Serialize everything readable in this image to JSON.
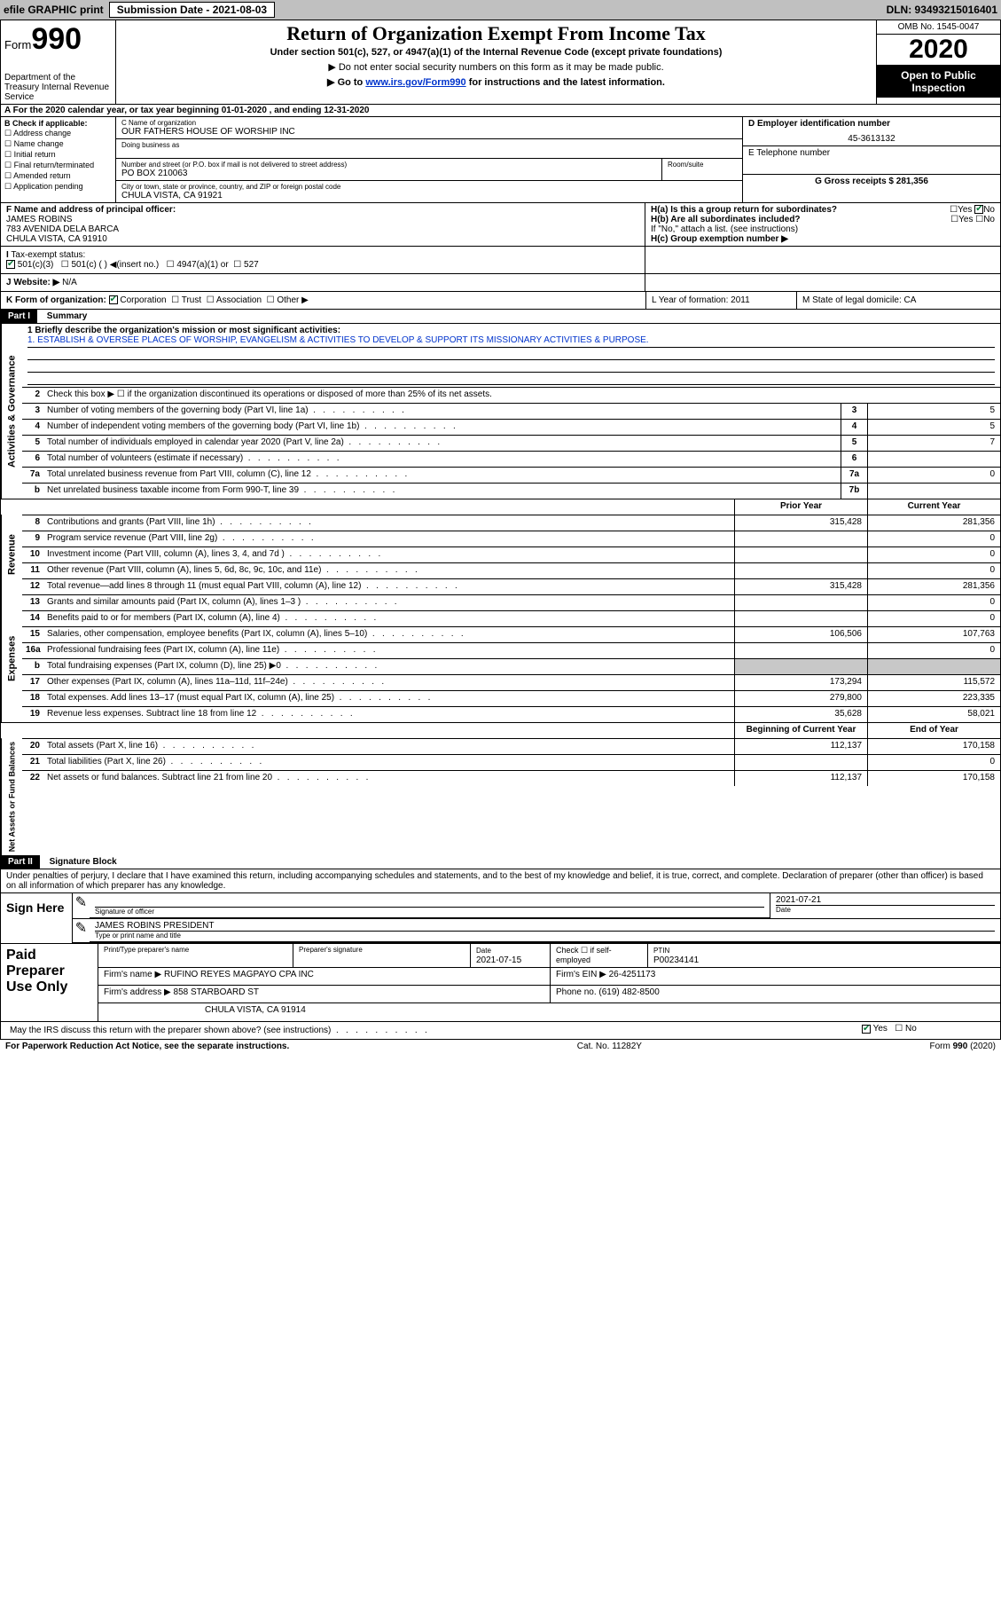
{
  "topbar": {
    "efile": "efile GRAPHIC print",
    "sub_label": "Submission Date - 2021-08-03",
    "dln": "DLN: 93493215016401"
  },
  "header": {
    "form_prefix": "Form",
    "form_num": "990",
    "dept": "Department of the Treasury Internal Revenue Service",
    "title": "Return of Organization Exempt From Income Tax",
    "subtitle": "Under section 501(c), 527, or 4947(a)(1) of the Internal Revenue Code (except private foundations)",
    "note1": "▶ Do not enter social security numbers on this form as it may be made public.",
    "note2_pre": "▶ Go to ",
    "note2_link": "www.irs.gov/Form990",
    "note2_post": " for instructions and the latest information.",
    "omb": "OMB No. 1545-0047",
    "year": "2020",
    "inspect": "Open to Public Inspection"
  },
  "row_a": "A For the 2020 calendar year, or tax year beginning 01-01-2020    , and ending 12-31-2020",
  "col_b": {
    "label": "B Check if applicable:",
    "opts": [
      "Address change",
      "Name change",
      "Initial return",
      "Final return/terminated",
      "Amended return",
      "Application pending"
    ]
  },
  "col_c": {
    "name_lbl": "C Name of organization",
    "name": "OUR FATHERS HOUSE OF WORSHIP INC",
    "dba_lbl": "Doing business as",
    "dba": "",
    "street_lbl": "Number and street (or P.O. box if mail is not delivered to street address)",
    "street": "PO BOX 210063",
    "room_lbl": "Room/suite",
    "city_lbl": "City or town, state or province, country, and ZIP or foreign postal code",
    "city": "CHULA VISTA, CA  91921"
  },
  "col_de": {
    "d_lbl": "D Employer identification number",
    "d_val": "45-3613132",
    "e_lbl": "E Telephone number",
    "e_val": "",
    "g_lbl": "G Gross receipts $ 281,356"
  },
  "row_f": {
    "lbl": "F  Name and address of principal officer:",
    "name": "JAMES ROBINS",
    "addr1": "783 AVENIDA DELA BARCA",
    "addr2": "CHULA VISTA, CA  91910"
  },
  "row_h": {
    "ha": "H(a)  Is this a group return for subordinates?",
    "hb": "H(b)  Are all subordinates included?",
    "hb_note": "If \"No,\" attach a list. (see instructions)",
    "hc": "H(c)  Group exemption number ▶",
    "yes": "Yes",
    "no": "No"
  },
  "row_i": {
    "lbl": "Tax-exempt status:",
    "opts": [
      "501(c)(3)",
      "501(c) (  ) ◀(insert no.)",
      "4947(a)(1) or",
      "527"
    ]
  },
  "row_j": {
    "lbl": "Website: ▶",
    "val": "N/A"
  },
  "row_k": {
    "lbl": "K Form of organization:",
    "opts": [
      "Corporation",
      "Trust",
      "Association",
      "Other ▶"
    ],
    "l": "L Year of formation: 2011",
    "m": "M State of legal domicile: CA"
  },
  "part1": {
    "hdr": "Part I",
    "title": "Summary",
    "line1_lbl": "1  Briefly describe the organization's mission or most significant activities:",
    "line1_val": "1. ESTABLISH & OVERSEE PLACES OF WORSHIP, EVANGELISM & ACTIVITIES TO DEVELOP & SUPPORT ITS MISSIONARY ACTIVITIES & PURPOSE.",
    "line2": "Check this box ▶ ☐  if the organization discontinued its operations or disposed of more than 25% of its net assets.",
    "gov_rows": [
      {
        "n": "3",
        "t": "Number of voting members of the governing body (Part VI, line 1a)",
        "box": "3",
        "v": "5"
      },
      {
        "n": "4",
        "t": "Number of independent voting members of the governing body (Part VI, line 1b)",
        "box": "4",
        "v": "5"
      },
      {
        "n": "5",
        "t": "Total number of individuals employed in calendar year 2020 (Part V, line 2a)",
        "box": "5",
        "v": "7"
      },
      {
        "n": "6",
        "t": "Total number of volunteers (estimate if necessary)",
        "box": "6",
        "v": ""
      },
      {
        "n": "7a",
        "t": "Total unrelated business revenue from Part VIII, column (C), line 12",
        "box": "7a",
        "v": "0"
      },
      {
        "n": "b",
        "t": "Net unrelated business taxable income from Form 990-T, line 39",
        "box": "7b",
        "v": ""
      }
    ],
    "col_hdr_prior": "Prior Year",
    "col_hdr_curr": "Current Year",
    "rev_label": "Revenue",
    "rev_rows": [
      {
        "n": "8",
        "t": "Contributions and grants (Part VIII, line 1h)",
        "p": "315,428",
        "c": "281,356"
      },
      {
        "n": "9",
        "t": "Program service revenue (Part VIII, line 2g)",
        "p": "",
        "c": "0"
      },
      {
        "n": "10",
        "t": "Investment income (Part VIII, column (A), lines 3, 4, and 7d )",
        "p": "",
        "c": "0"
      },
      {
        "n": "11",
        "t": "Other revenue (Part VIII, column (A), lines 5, 6d, 8c, 9c, 10c, and 11e)",
        "p": "",
        "c": "0"
      },
      {
        "n": "12",
        "t": "Total revenue—add lines 8 through 11 (must equal Part VIII, column (A), line 12)",
        "p": "315,428",
        "c": "281,356"
      }
    ],
    "exp_label": "Expenses",
    "exp_rows": [
      {
        "n": "13",
        "t": "Grants and similar amounts paid (Part IX, column (A), lines 1–3 )",
        "p": "",
        "c": "0"
      },
      {
        "n": "14",
        "t": "Benefits paid to or for members (Part IX, column (A), line 4)",
        "p": "",
        "c": "0"
      },
      {
        "n": "15",
        "t": "Salaries, other compensation, employee benefits (Part IX, column (A), lines 5–10)",
        "p": "106,506",
        "c": "107,763"
      },
      {
        "n": "16a",
        "t": "Professional fundraising fees (Part IX, column (A), line 11e)",
        "p": "",
        "c": "0"
      },
      {
        "n": "b",
        "t": "Total fundraising expenses (Part IX, column (D), line 25) ▶0",
        "p": "SHADE",
        "c": "SHADE"
      },
      {
        "n": "17",
        "t": "Other expenses (Part IX, column (A), lines 11a–11d, 11f–24e)",
        "p": "173,294",
        "c": "115,572"
      },
      {
        "n": "18",
        "t": "Total expenses. Add lines 13–17 (must equal Part IX, column (A), line 25)",
        "p": "279,800",
        "c": "223,335"
      },
      {
        "n": "19",
        "t": "Revenue less expenses. Subtract line 18 from line 12",
        "p": "35,628",
        "c": "58,021"
      }
    ],
    "na_label": "Net Assets or Fund Balances",
    "na_hdr_prior": "Beginning of Current Year",
    "na_hdr_curr": "End of Year",
    "na_rows": [
      {
        "n": "20",
        "t": "Total assets (Part X, line 16)",
        "p": "112,137",
        "c": "170,158"
      },
      {
        "n": "21",
        "t": "Total liabilities (Part X, line 26)",
        "p": "",
        "c": "0"
      },
      {
        "n": "22",
        "t": "Net assets or fund balances. Subtract line 21 from line 20",
        "p": "112,137",
        "c": "170,158"
      }
    ]
  },
  "part2": {
    "hdr": "Part II",
    "title": "Signature Block",
    "decl": "Under penalties of perjury, I declare that I have examined this return, including accompanying schedules and statements, and to the best of my knowledge and belief, it is true, correct, and complete. Declaration of preparer (other than officer) is based on all information of which preparer has any knowledge."
  },
  "sign": {
    "lbl": "Sign Here",
    "sig_lbl": "Signature of officer",
    "date_lbl": "Date",
    "date": "2021-07-21",
    "name_lbl": "Type or print name and title",
    "name": "JAMES ROBINS  PRESIDENT"
  },
  "paid": {
    "lbl": "Paid Preparer Use Only",
    "h1": "Print/Type preparer's name",
    "h2": "Preparer's signature",
    "h3": "Date",
    "h4": "Check ☐ if self-employed",
    "h5": "PTIN",
    "date": "2021-07-15",
    "ptin": "P00234141",
    "firm_lbl": "Firm's name    ▶",
    "firm": "RUFINO REYES MAGPAYO CPA INC",
    "ein_lbl": "Firm's EIN ▶",
    "ein": "26-4251173",
    "addr_lbl": "Firm's address ▶",
    "addr1": "858 STARBOARD ST",
    "addr2": "CHULA VISTA, CA  91914",
    "phone_lbl": "Phone no.",
    "phone": "(619) 482-8500"
  },
  "footer": {
    "discuss": "May the IRS discuss this return with the preparer shown above? (see instructions)",
    "yes": "Yes",
    "no": "No",
    "pra": "For Paperwork Reduction Act Notice, see the separate instructions.",
    "cat": "Cat. No. 11282Y",
    "form": "Form 990 (2020)"
  },
  "colors": {
    "link": "#0033cc",
    "check": "#0a7a3a",
    "shade": "#c8c8c8"
  }
}
